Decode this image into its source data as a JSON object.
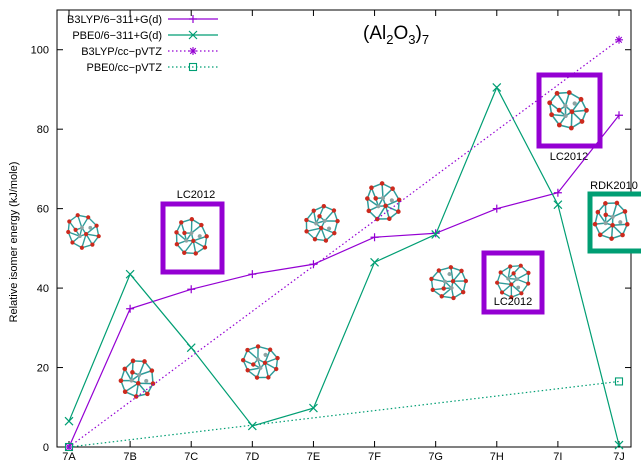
{
  "chart_data": {
    "type": "line",
    "title_main": "(Al",
    "title_sub1": "2",
    "title_mid": "O",
    "title_sub2": "3",
    "title_close": ")",
    "title_sub3": "7",
    "ylabel": "Relative isomer energy (kJ/mole)",
    "xlabel": "",
    "categories": [
      "7A",
      "7B",
      "7C",
      "7D",
      "7E",
      "7F",
      "7G",
      "7H",
      "7I",
      "7J"
    ],
    "ylim": [
      0,
      110
    ],
    "yticks": [
      0,
      20,
      40,
      60,
      80,
      100
    ],
    "legend_position": "top-left",
    "series": [
      {
        "name": "B3LYP/6−311+G(d)",
        "color": "#9400d3",
        "marker": "plus",
        "dash": "solid",
        "points": [
          [
            0,
            0
          ],
          [
            1,
            34.8
          ],
          [
            2,
            39.7
          ],
          [
            3,
            43.5
          ],
          [
            4,
            46
          ],
          [
            5,
            52.8
          ],
          [
            6,
            53.8
          ],
          [
            7,
            60
          ],
          [
            8,
            64
          ],
          [
            9,
            83.5
          ]
        ]
      },
      {
        "name": "PBE0/6−311+G(d)",
        "color": "#009e73",
        "marker": "x",
        "dash": "solid",
        "points": [
          [
            0,
            6.5
          ],
          [
            1,
            43.5
          ],
          [
            2,
            25
          ],
          [
            3,
            5.3
          ],
          [
            4,
            9.8
          ],
          [
            5,
            46.5
          ],
          [
            6,
            53.5
          ],
          [
            7,
            90.5
          ],
          [
            8,
            61
          ],
          [
            9,
            0.5
          ]
        ]
      },
      {
        "name": "B3LYP/cc−pVTZ",
        "color": "#9400d3",
        "marker": "star",
        "dash": "dotted",
        "points": [
          [
            0,
            0
          ],
          [
            9,
            102.5
          ]
        ]
      },
      {
        "name": "PBE0/cc−pVTZ",
        "color": "#009e73",
        "marker": "square",
        "dash": "dotted",
        "points": [
          [
            0,
            0
          ],
          [
            9,
            16.5
          ]
        ]
      }
    ],
    "annotations": [
      {
        "label": "LC2012"
      },
      {
        "label": "LC2012"
      },
      {
        "label": "LC2012"
      },
      {
        "label": "RDK2010"
      }
    ]
  }
}
